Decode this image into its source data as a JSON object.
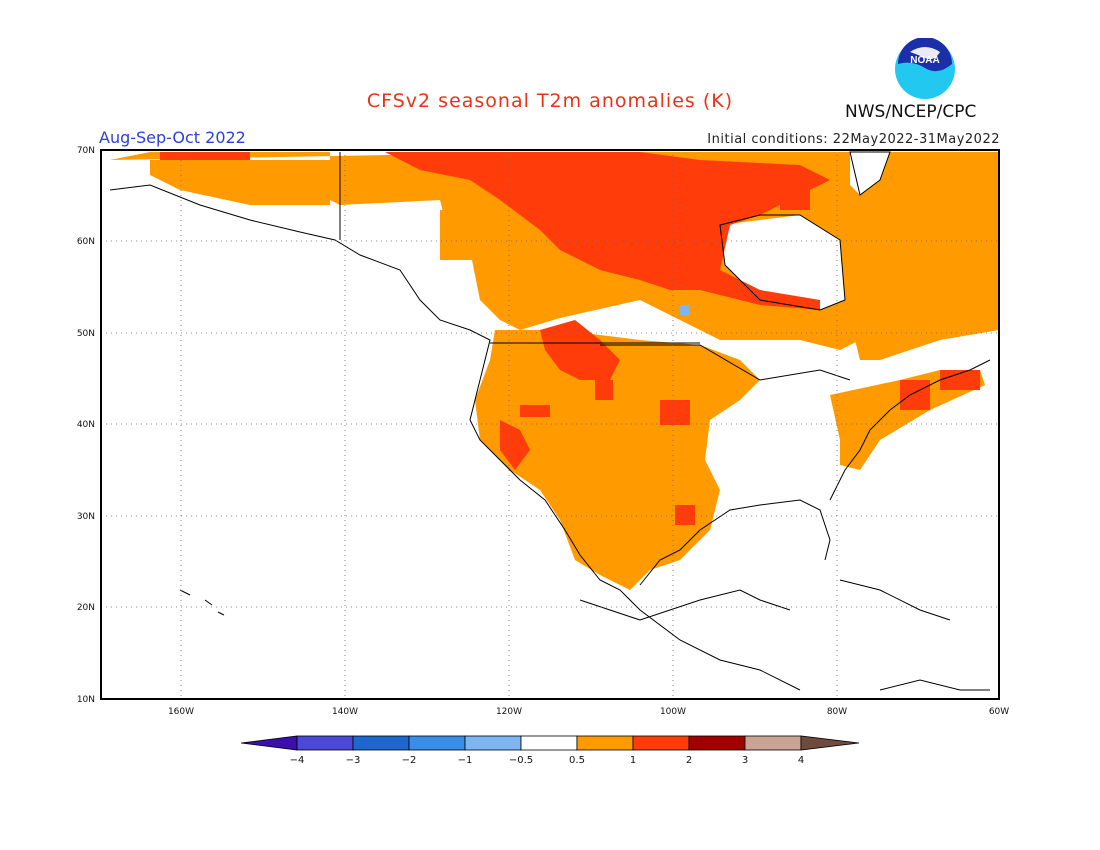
{
  "header": {
    "title": "CFSv2 seasonal T2m anomalies (K)",
    "season": "Aug-Sep-Oct 2022",
    "initial_conditions": "Initial conditions: 22May2022-31May2022",
    "organization": "NWS/NCEP/CPC",
    "logo_text": "NOAA",
    "logo_icon": "noaa-logo-icon"
  },
  "axes": {
    "lat_labels": [
      "70N",
      "60N",
      "50N",
      "40N",
      "30N",
      "20N",
      "10N"
    ],
    "lon_labels": [
      "160W",
      "140W",
      "120W",
      "100W",
      "80W",
      "60W"
    ]
  },
  "colorbar": {
    "labels": [
      "-4",
      "-3",
      "-2",
      "-1",
      "-0.5",
      "0.5",
      "1",
      "2",
      "3",
      "4"
    ],
    "colors": [
      "#3b0fae",
      "#4a48d6",
      "#1f66cf",
      "#3b8ee8",
      "#7fb6f2",
      "#ffffff",
      "#ff9a00",
      "#ff3c0a",
      "#a00000",
      "#c9a393",
      "#6e4a3f"
    ]
  },
  "colors": {
    "orange": "#ff9a00",
    "red": "#ff3c0a",
    "lightblue": "#7fb6f2"
  }
}
